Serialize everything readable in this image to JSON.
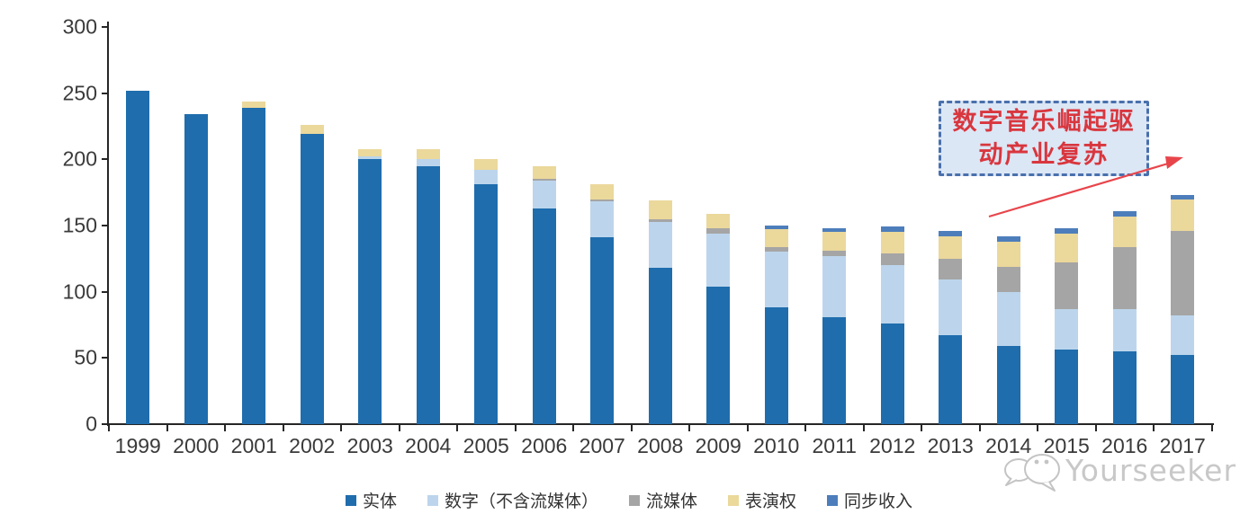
{
  "chart_data": {
    "type": "bar",
    "stacked": true,
    "title": "",
    "xlabel": "",
    "ylabel": "",
    "ylim": [
      0,
      300
    ],
    "yticks": [
      0,
      50,
      100,
      150,
      200,
      250,
      300
    ],
    "grid": false,
    "legend_position": "bottom",
    "categories": [
      "1999",
      "2000",
      "2001",
      "2002",
      "2003",
      "2004",
      "2005",
      "2006",
      "2007",
      "2008",
      "2009",
      "2010",
      "2011",
      "2012",
      "2013",
      "2014",
      "2015",
      "2016",
      "2017"
    ],
    "series": [
      {
        "id": "physical",
        "name": "实体",
        "color": "#1F6DAD",
        "values": [
          252,
          234,
          239,
          219,
          200,
          195,
          181,
          163,
          141,
          118,
          104,
          88,
          81,
          76,
          67,
          59,
          56,
          55,
          52
        ]
      },
      {
        "id": "digital-excl-streaming",
        "name": "数字（不含流媒体）",
        "color": "#BCD5EC",
        "values": [
          0,
          0,
          0,
          0,
          2,
          5,
          11,
          21,
          27,
          35,
          40,
          42,
          46,
          44,
          42,
          41,
          31,
          32,
          30
        ]
      },
      {
        "id": "streaming",
        "name": "流媒体",
        "color": "#A5A5A5",
        "values": [
          0,
          0,
          0,
          0,
          0,
          0,
          0,
          1,
          2,
          2,
          4,
          4,
          4,
          9,
          16,
          19,
          35,
          47,
          64
        ]
      },
      {
        "id": "performance-rights",
        "name": "表演权",
        "color": "#EBD89B",
        "values": [
          0,
          0,
          5,
          7,
          6,
          8,
          8,
          10,
          11,
          14,
          11,
          13,
          14,
          16,
          17,
          19,
          22,
          23,
          24
        ]
      },
      {
        "id": "sync-revenue",
        "name": "同步收入",
        "color": "#4D7EBB",
        "values": [
          0,
          0,
          0,
          0,
          0,
          0,
          0,
          0,
          0,
          0,
          0,
          3,
          3,
          4,
          4,
          4,
          4,
          4,
          3
        ]
      }
    ]
  },
  "annotation": {
    "line1": "数字音乐崛起驱",
    "line2": "动产业复苏",
    "text_color": "#D9363E",
    "border_color": "#4A70AD",
    "background_color": "#DBE7F5",
    "arrow_color": "#E8454B"
  },
  "watermark": {
    "text": "Yourseeker",
    "color": "#C8C8C8"
  },
  "axis": {
    "line_color": "#262626",
    "label_color": "#3A3A3A"
  }
}
